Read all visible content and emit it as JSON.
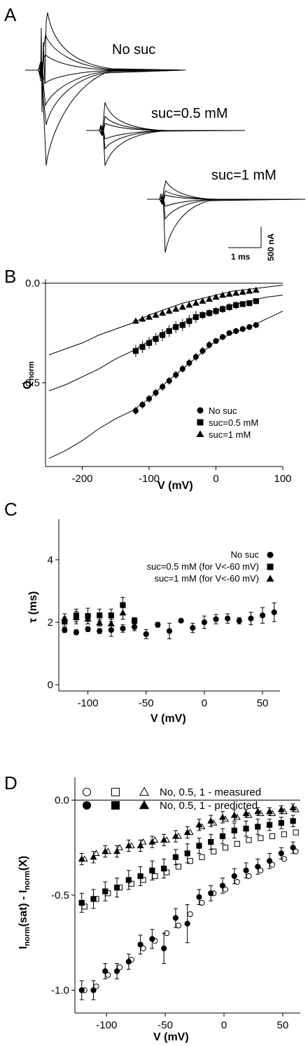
{
  "panels": {
    "A": {
      "letter": "A",
      "trace_labels": [
        "No suc",
        "suc=0.5 mM",
        "suc=1 mM"
      ],
      "scalebar": {
        "time_label": "1 ms",
        "current_label": "500 nA"
      }
    },
    "B": {
      "letter": "B"
    },
    "C": {
      "letter": "C"
    },
    "D": {
      "letter": "D"
    }
  },
  "chart_data": [
    {
      "panel": "B",
      "type": "scatter",
      "xlabel": "V (mV)",
      "ylabel": "Q",
      "ylabel_sub": "norm",
      "xlim": [
        -255,
        100
      ],
      "ylim": [
        -0.92,
        0.02
      ],
      "xticks": [
        "-200",
        "-100",
        "0",
        "100"
      ],
      "yticks": [
        "0.0",
        "-0.5"
      ],
      "zero_line": true,
      "legend_position": "bottom-right",
      "x": [
        -120,
        -110,
        -100,
        -90,
        -80,
        -70,
        -60,
        -50,
        -40,
        -30,
        -20,
        -10,
        0,
        10,
        20,
        30,
        40,
        50,
        60
      ],
      "series": [
        {
          "name": "No suc",
          "marker": "circle",
          "values": [
            -0.64,
            -0.61,
            -0.58,
            -0.55,
            -0.52,
            -0.49,
            -0.46,
            -0.43,
            -0.4,
            -0.37,
            -0.34,
            -0.31,
            -0.29,
            -0.27,
            -0.25,
            -0.24,
            -0.23,
            -0.22,
            -0.21
          ],
          "err": [
            0.02,
            0.02,
            0.02,
            0.02,
            0.02,
            0.02,
            0.02,
            0.02,
            0.02,
            0.02,
            0.02,
            0.02,
            0.015,
            0.015,
            0.015,
            0.015,
            0.015,
            0.015,
            0.015
          ],
          "fit_x": [
            -250,
            -225,
            -200,
            -175,
            -150,
            -125,
            -100,
            -75,
            -50,
            -25,
            0,
            25,
            50,
            75,
            100
          ],
          "fit_y": [
            -0.88,
            -0.84,
            -0.79,
            -0.73,
            -0.68,
            -0.64,
            -0.58,
            -0.5,
            -0.43,
            -0.36,
            -0.29,
            -0.25,
            -0.22,
            -0.18,
            -0.14
          ]
        },
        {
          "name": "suc=0.5 mM",
          "marker": "square",
          "values": [
            -0.34,
            -0.32,
            -0.3,
            -0.28,
            -0.26,
            -0.24,
            -0.22,
            -0.21,
            -0.19,
            -0.17,
            -0.16,
            -0.15,
            -0.14,
            -0.13,
            -0.12,
            -0.11,
            -0.105,
            -0.1,
            -0.09
          ],
          "err": [
            0.03,
            0.03,
            0.03,
            0.03,
            0.03,
            0.03,
            0.03,
            0.03,
            0.03,
            0.03,
            0.02,
            0.02,
            0.02,
            0.02,
            0.02,
            0.02,
            0.015,
            0.015,
            0.015
          ],
          "fit_x": [
            -250,
            -225,
            -200,
            -175,
            -150,
            -125,
            -100,
            -75,
            -50,
            -25,
            0,
            25,
            50,
            75,
            100
          ],
          "fit_y": [
            -0.54,
            -0.51,
            -0.47,
            -0.43,
            -0.38,
            -0.34,
            -0.29,
            -0.24,
            -0.2,
            -0.16,
            -0.14,
            -0.11,
            -0.09,
            -0.07,
            -0.06
          ]
        },
        {
          "name": "suc=1 mM",
          "marker": "triangle",
          "values": [
            -0.19,
            -0.18,
            -0.17,
            -0.16,
            -0.15,
            -0.14,
            -0.13,
            -0.12,
            -0.11,
            -0.1,
            -0.09,
            -0.08,
            -0.07,
            -0.06,
            -0.055,
            -0.05,
            -0.045,
            -0.04,
            -0.035
          ],
          "err": [
            0.015,
            0.015,
            0.015,
            0.015,
            0.015,
            0.015,
            0.015,
            0.015,
            0.012,
            0.012,
            0.012,
            0.012,
            0.01,
            0.01,
            0.01,
            0.01,
            0.01,
            0.01,
            0.01
          ],
          "fit_x": [
            -250,
            -225,
            -200,
            -175,
            -150,
            -125,
            -100,
            -75,
            -50,
            -25,
            0,
            25,
            50,
            75,
            100
          ],
          "fit_y": [
            -0.36,
            -0.33,
            -0.3,
            -0.26,
            -0.23,
            -0.2,
            -0.16,
            -0.13,
            -0.1,
            -0.08,
            -0.06,
            -0.04,
            -0.03,
            -0.02,
            -0.01
          ]
        }
      ]
    },
    {
      "panel": "C",
      "type": "scatter",
      "xlabel": "V (mV)",
      "ylabel": "τ (ms)",
      "xlim": [
        -125,
        65
      ],
      "ylim": [
        -0.2,
        5.3
      ],
      "xticks": [
        "-100",
        "-50",
        "0",
        "50"
      ],
      "yticks": [
        "0",
        "2",
        "4"
      ],
      "legend_position": "top-right",
      "series": [
        {
          "name": "No suc",
          "marker": "circle",
          "x": [
            -120,
            -110,
            -100,
            -90,
            -80,
            -70,
            -60,
            -50,
            -40,
            -30,
            -20,
            -10,
            0,
            10,
            20,
            30,
            40,
            50,
            60
          ],
          "values": [
            1.75,
            1.68,
            1.78,
            1.72,
            1.75,
            1.8,
            1.85,
            1.62,
            1.92,
            1.72,
            2.05,
            1.82,
            2.0,
            2.1,
            2.12,
            2.05,
            2.12,
            2.22,
            2.32
          ],
          "err": [
            0.08,
            0.08,
            0.08,
            0.08,
            0.2,
            0.12,
            0.12,
            0.15,
            0.08,
            0.25,
            0.05,
            0.15,
            0.2,
            0.15,
            0.15,
            0.1,
            0.2,
            0.25,
            0.3
          ]
        },
        {
          "name": "suc=0.5 mM (for V<-60 mV)",
          "marker": "square",
          "x": [
            -120,
            -110,
            -100,
            -90,
            -80,
            -70,
            -60
          ],
          "values": [
            2.02,
            2.22,
            2.2,
            2.22,
            2.22,
            2.55,
            2.05
          ],
          "err": [
            0.15,
            0.2,
            0.25,
            0.2,
            0.2,
            0.25,
            0.1
          ]
        },
        {
          "name": "suc=1 mM (for V<-60 mV)",
          "marker": "triangle",
          "x": [
            -120,
            -110,
            -100,
            -90,
            -80,
            -70
          ],
          "values": [
            2.12,
            2.15,
            2.1,
            1.98,
            1.95,
            2.3
          ],
          "err": [
            0.15,
            0.2,
            0.15,
            0.1,
            0.15,
            0.2
          ]
        }
      ]
    },
    {
      "panel": "D",
      "type": "scatter",
      "xlabel": "V (mV)",
      "ylabel": "I",
      "ylabel_parts": [
        {
          "t": "I",
          "sub": false
        },
        {
          "t": "norm",
          "sub": true
        },
        {
          "t": "(sat) - I",
          "sub": false
        },
        {
          "t": "norm",
          "sub": true
        },
        {
          "t": "(X)",
          "sub": false
        }
      ],
      "xlim": [
        -127,
        65
      ],
      "ylim": [
        -1.12,
        0.12
      ],
      "xticks": [
        "-100",
        "-50",
        "0",
        "50"
      ],
      "yticks": [
        "0.0",
        "-0.5",
        "-1.0"
      ],
      "zero_line": true,
      "legend": [
        {
          "label": "No, 0.5, 1 - measured",
          "markers": [
            "circle",
            "square",
            "triangle"
          ],
          "filled": false
        },
        {
          "label": "No, 0.5, 1 - predicted",
          "markers": [
            "circle",
            "square",
            "triangle"
          ],
          "filled": true
        }
      ],
      "legend_position": "top",
      "x": [
        -120,
        -110,
        -100,
        -90,
        -80,
        -70,
        -60,
        -50,
        -40,
        -30,
        -20,
        -10,
        0,
        10,
        20,
        30,
        40,
        50,
        60
      ],
      "series": [
        {
          "name": "No measured",
          "marker": "circle",
          "filled": false,
          "values": [
            -1.0,
            -0.98,
            -0.92,
            -0.88,
            -0.84,
            -0.78,
            -0.74,
            -0.7,
            -0.66,
            -0.6,
            -0.54,
            -0.49,
            -0.47,
            -0.43,
            -0.4,
            -0.37,
            -0.34,
            -0.31,
            -0.27
          ]
        },
        {
          "name": "No predicted",
          "marker": "circle",
          "filled": true,
          "values": [
            -1.0,
            -1.0,
            -0.9,
            -0.9,
            -0.85,
            -0.76,
            -0.73,
            -0.78,
            -0.62,
            -0.65,
            -0.51,
            -0.49,
            -0.45,
            -0.4,
            -0.37,
            -0.35,
            -0.32,
            -0.28,
            -0.25
          ],
          "err": [
            0.05,
            0.05,
            0.04,
            0.04,
            0.04,
            0.05,
            0.05,
            0.08,
            0.05,
            0.1,
            0.04,
            0.04,
            0.04,
            0.04,
            0.04,
            0.04,
            0.04,
            0.03,
            0.03
          ]
        },
        {
          "name": "0.5 measured",
          "marker": "square",
          "filled": false,
          "values": [
            -0.56,
            -0.52,
            -0.49,
            -0.46,
            -0.44,
            -0.42,
            -0.4,
            -0.38,
            -0.35,
            -0.32,
            -0.3,
            -0.27,
            -0.25,
            -0.23,
            -0.21,
            -0.2,
            -0.19,
            -0.18,
            -0.17
          ]
        },
        {
          "name": "0.5 predicted",
          "marker": "square",
          "filled": true,
          "values": [
            -0.54,
            -0.52,
            -0.48,
            -0.46,
            -0.42,
            -0.4,
            -0.37,
            -0.36,
            -0.3,
            -0.28,
            -0.24,
            -0.22,
            -0.19,
            -0.16,
            -0.15,
            -0.14,
            -0.13,
            -0.12,
            -0.11
          ],
          "err": [
            0.05,
            0.05,
            0.05,
            0.05,
            0.05,
            0.05,
            0.05,
            0.05,
            0.04,
            0.05,
            0.04,
            0.04,
            0.04,
            0.04,
            0.04,
            0.04,
            0.03,
            0.03,
            0.03
          ]
        },
        {
          "name": "1 measured",
          "marker": "triangle",
          "filled": false,
          "values": [
            -0.31,
            -0.28,
            -0.27,
            -0.25,
            -0.24,
            -0.22,
            -0.21,
            -0.21,
            -0.19,
            -0.17,
            -0.14,
            -0.12,
            -0.1,
            -0.09,
            -0.08,
            -0.07,
            -0.07,
            -0.06,
            -0.05
          ]
        },
        {
          "name": "1 predicted",
          "marker": "triangle",
          "filled": true,
          "values": [
            -0.31,
            -0.3,
            -0.27,
            -0.27,
            -0.24,
            -0.24,
            -0.22,
            -0.21,
            -0.19,
            -0.17,
            -0.13,
            -0.11,
            -0.09,
            -0.08,
            -0.07,
            -0.06,
            -0.06,
            -0.05,
            -0.04
          ],
          "err": [
            0.03,
            0.03,
            0.03,
            0.03,
            0.03,
            0.03,
            0.03,
            0.03,
            0.03,
            0.03,
            0.03,
            0.03,
            0.03,
            0.03,
            0.02,
            0.02,
            0.02,
            0.02,
            0.02
          ]
        }
      ]
    }
  ]
}
